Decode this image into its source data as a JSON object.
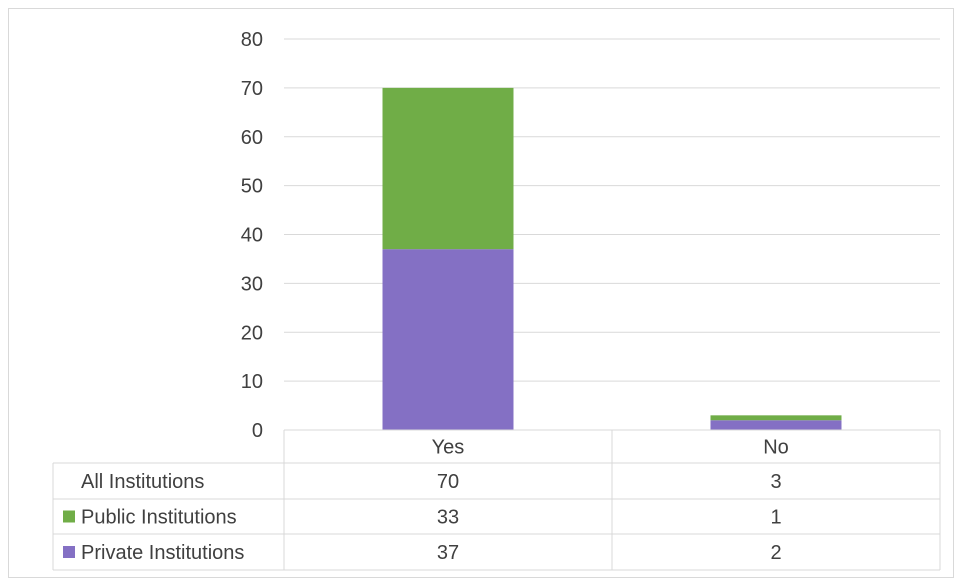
{
  "chart_data": {
    "type": "bar",
    "stacked": true,
    "categories": [
      "Yes",
      "No"
    ],
    "series": [
      {
        "name": "Private Institutions",
        "values": [
          37,
          2
        ],
        "color": "#8470c4"
      },
      {
        "name": "Public Institutions",
        "values": [
          33,
          1
        ],
        "color": "#70ad47"
      }
    ],
    "total": {
      "name": "All Institutions",
      "values": [
        70,
        3
      ]
    },
    "ylim": [
      0,
      80
    ],
    "yticks": [
      0,
      10,
      20,
      30,
      40,
      50,
      60,
      70,
      80
    ],
    "grid": true,
    "legend": "data-table"
  }
}
